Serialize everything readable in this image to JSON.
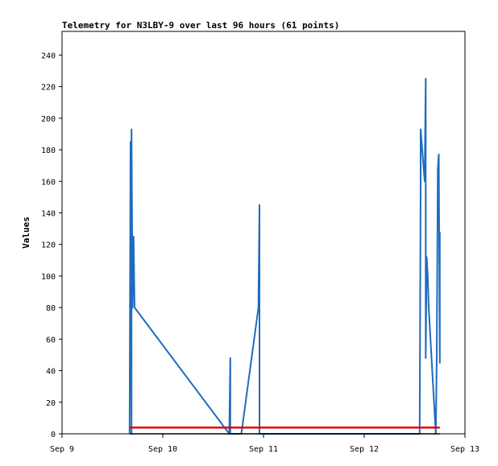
{
  "chart_data": {
    "type": "line",
    "title": "Telemetry for N3LBY-9 over last 96 hours (61 points)",
    "xlabel": "",
    "ylabel": "Values",
    "xlim": [
      "Sep 9",
      "Sep 13"
    ],
    "ylim": [
      0,
      255
    ],
    "x_ticks": [
      "Sep 9",
      "Sep 10",
      "Sep 11",
      "Sep 12",
      "Sep 13"
    ],
    "y_ticks": [
      0,
      20,
      40,
      60,
      80,
      100,
      120,
      140,
      160,
      180,
      200,
      220,
      240
    ],
    "grid": false,
    "legend": false,
    "series": [
      {
        "color": "#1f6bbf",
        "x": [
          9.67,
          9.68,
          9.69,
          9.69,
          9.7,
          9.71,
          9.72,
          10.66,
          10.67,
          10.67,
          10.78,
          10.95,
          10.96,
          10.96,
          12.55,
          12.56,
          12.56,
          12.6,
          12.61,
          12.61,
          12.62,
          12.63,
          12.64,
          12.71,
          12.72,
          12.73,
          12.74,
          12.75,
          12.75
        ],
        "y": [
          0,
          185,
          0,
          193,
          80,
          125,
          80,
          0,
          48,
          0,
          0,
          80,
          145,
          0,
          0,
          160,
          193,
          160,
          225,
          48,
          112,
          100,
          80,
          0,
          50,
          168,
          177,
          45,
          128
        ]
      },
      {
        "color": "#e00000",
        "x": [
          9.67,
          12.75
        ],
        "y": [
          4,
          4
        ]
      },
      {
        "color": "#000000",
        "x": [
          9.67,
          12.75
        ],
        "y": [
          0,
          0
        ]
      }
    ]
  }
}
